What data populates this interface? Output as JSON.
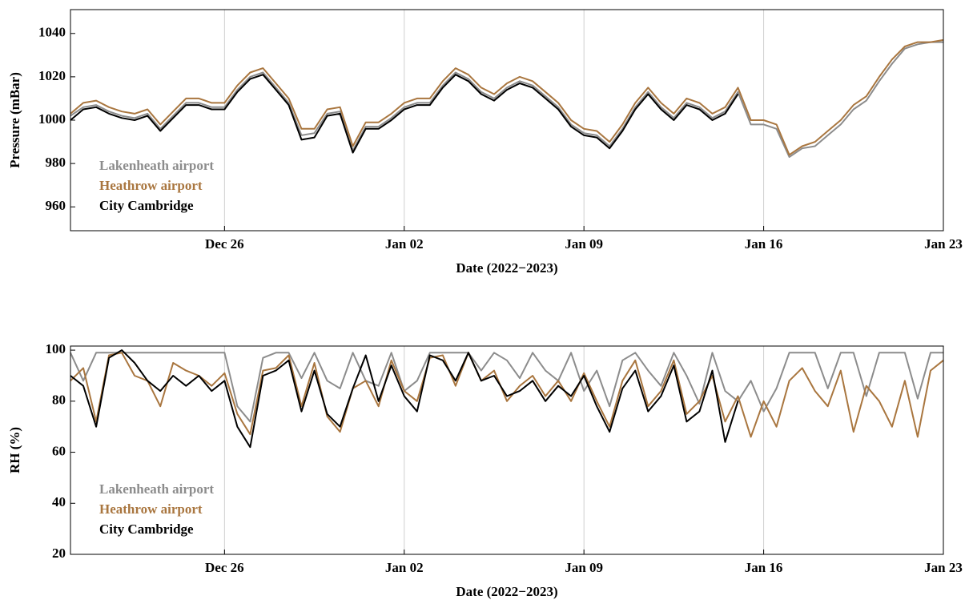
{
  "chart_data": [
    {
      "type": "line",
      "xlabel": "Date (2022−2023)",
      "ylabel": "Pressure (mBar)",
      "grid": true,
      "legend": "lower left",
      "xlim": [
        0,
        34
      ],
      "ylim": [
        949,
        1051
      ],
      "xticks": [
        {
          "value": 6,
          "label": "Dec 26"
        },
        {
          "value": 13,
          "label": "Jan 02"
        },
        {
          "value": 20,
          "label": "Jan 09"
        },
        {
          "value": 27,
          "label": "Jan 16"
        },
        {
          "value": 34,
          "label": "Jan 23"
        }
      ],
      "yticks": [
        960,
        980,
        1000,
        1020,
        1040
      ],
      "x": [
        0,
        0.5,
        1,
        1.5,
        2,
        2.5,
        3,
        3.5,
        4,
        4.5,
        5,
        5.5,
        6,
        6.5,
        7,
        7.5,
        8,
        8.5,
        9,
        9.5,
        10,
        10.5,
        11,
        11.5,
        12,
        12.5,
        13,
        13.5,
        14,
        14.5,
        15,
        15.5,
        16,
        16.5,
        17,
        17.5,
        18,
        18.5,
        19,
        19.5,
        20,
        20.5,
        21,
        21.5,
        22,
        22.5,
        23,
        23.5,
        24,
        24.5,
        25,
        25.5,
        26,
        26.5,
        27,
        27.5,
        28,
        28.5,
        29,
        29.5,
        30,
        30.5,
        31,
        31.5,
        32,
        32.5,
        33,
        33.5,
        34
      ],
      "series": [
        {
          "name": "Lakenheath airport",
          "color": "#8c8c8c",
          "values": [
            1002,
            1006,
            1007,
            1004,
            1002,
            1001,
            1003,
            996,
            1002,
            1008,
            1008,
            1006,
            1006,
            1014,
            1020,
            1022,
            1015,
            1008,
            993,
            994,
            1003,
            1004,
            986,
            997,
            997,
            1001,
            1006,
            1008,
            1008,
            1016,
            1022,
            1019,
            1013,
            1010,
            1015,
            1018,
            1016,
            1011,
            1006,
            998,
            994,
            993,
            988,
            996,
            1006,
            1013,
            1006,
            1001,
            1008,
            1006,
            1001,
            1004,
            1013,
            998,
            998,
            996,
            983,
            987,
            988,
            993,
            998,
            1005,
            1009,
            1018,
            1026,
            1033,
            1035,
            1036,
            1036
          ]
        },
        {
          "name": "Heathrow airport",
          "color": "#a9763f",
          "values": [
            1003,
            1008,
            1009,
            1006,
            1004,
            1003,
            1005,
            998,
            1004,
            1010,
            1010,
            1008,
            1008,
            1016,
            1022,
            1024,
            1017,
            1010,
            996,
            996,
            1005,
            1006,
            988,
            999,
            999,
            1003,
            1008,
            1010,
            1010,
            1018,
            1024,
            1021,
            1015,
            1012,
            1017,
            1020,
            1018,
            1013,
            1008,
            1000,
            996,
            995,
            990,
            998,
            1008,
            1015,
            1008,
            1003,
            1010,
            1008,
            1003,
            1006,
            1015,
            1000,
            1000,
            998,
            984,
            988,
            990,
            995,
            1000,
            1007,
            1011,
            1020,
            1028,
            1034,
            1036,
            1036,
            1037
          ]
        },
        {
          "name": "City Cambridge",
          "color": "#000000",
          "values": [
            1000,
            1005,
            1006,
            1003,
            1001,
            1000,
            1002,
            995,
            1001,
            1007,
            1007,
            1005,
            1005,
            1013,
            1019,
            1021,
            1014,
            1007,
            991,
            992,
            1002,
            1003,
            985,
            996,
            996,
            1000,
            1005,
            1007,
            1007,
            1015,
            1021,
            1018,
            1012,
            1009,
            1014,
            1017,
            1015,
            1010,
            1005,
            997,
            993,
            992,
            987,
            995,
            1005,
            1012,
            1005,
            1000,
            1007,
            1005,
            1000,
            1003,
            1012,
            null,
            null,
            null,
            null,
            null,
            null,
            null,
            null,
            null,
            null,
            null,
            null,
            null,
            null,
            null,
            null
          ]
        }
      ]
    },
    {
      "type": "line",
      "xlabel": "Date (2022−2023)",
      "ylabel": "RH (%)",
      "grid": true,
      "legend": "lower left",
      "xlim": [
        0,
        34
      ],
      "ylim": [
        20,
        101.6
      ],
      "xticks": [
        {
          "value": 6,
          "label": "Dec 26"
        },
        {
          "value": 13,
          "label": "Jan 02"
        },
        {
          "value": 20,
          "label": "Jan 09"
        },
        {
          "value": 27,
          "label": "Jan 16"
        },
        {
          "value": 34,
          "label": "Jan 23"
        }
      ],
      "yticks": [
        20,
        40,
        60,
        80,
        100
      ],
      "x": [
        0,
        0.5,
        1,
        1.5,
        2,
        2.5,
        3,
        3.5,
        4,
        4.5,
        5,
        5.5,
        6,
        6.5,
        7,
        7.5,
        8,
        8.5,
        9,
        9.5,
        10,
        10.5,
        11,
        11.5,
        12,
        12.5,
        13,
        13.5,
        14,
        14.5,
        15,
        15.5,
        16,
        16.5,
        17,
        17.5,
        18,
        18.5,
        19,
        19.5,
        20,
        20.5,
        21,
        21.5,
        22,
        22.5,
        23,
        23.5,
        24,
        24.5,
        25,
        25.5,
        26,
        26.5,
        27,
        27.5,
        28,
        28.5,
        29,
        29.5,
        30,
        30.5,
        31,
        31.5,
        32,
        32.5,
        33,
        33.5,
        34
      ],
      "series": [
        {
          "name": "Lakenheath airport",
          "color": "#8c8c8c",
          "values": [
            99,
            88,
            99,
            99,
            99,
            99,
            99,
            99,
            99,
            99,
            99,
            99,
            99,
            78,
            72,
            97,
            99,
            99,
            89,
            99,
            88,
            85,
            99,
            88,
            86,
            99,
            84,
            88,
            99,
            99,
            99,
            99,
            92,
            99,
            96,
            89,
            99,
            92,
            88,
            99,
            84,
            92,
            78,
            96,
            99,
            92,
            86,
            99,
            90,
            79,
            99,
            84,
            80,
            88,
            76,
            85,
            99,
            99,
            99,
            85,
            99,
            99,
            82,
            99,
            99,
            99,
            81,
            99,
            99
          ]
        },
        {
          "name": "Heathrow airport",
          "color": "#a9763f",
          "values": [
            88,
            93,
            72,
            98,
            99,
            90,
            88,
            78,
            95,
            92,
            90,
            86,
            91,
            75,
            67,
            92,
            93,
            98,
            78,
            95,
            74,
            68,
            85,
            88,
            78,
            96,
            84,
            80,
            97,
            98,
            86,
            99,
            88,
            92,
            80,
            86,
            90,
            82,
            88,
            80,
            91,
            80,
            70,
            88,
            96,
            78,
            84,
            96,
            75,
            80,
            90,
            72,
            82,
            66,
            80,
            70,
            88,
            93,
            84,
            78,
            92,
            68,
            86,
            80,
            70,
            88,
            66,
            92,
            96
          ]
        },
        {
          "name": "City Cambridge",
          "color": "#000000",
          "values": [
            90,
            86,
            70,
            97,
            100,
            95,
            88,
            84,
            90,
            86,
            90,
            84,
            88,
            70,
            62,
            90,
            92,
            96,
            76,
            92,
            75,
            70,
            85,
            98,
            80,
            94,
            82,
            76,
            98,
            96,
            88,
            99,
            88,
            90,
            82,
            84,
            88,
            80,
            86,
            82,
            90,
            78,
            68,
            85,
            92,
            76,
            82,
            94,
            72,
            76,
            92,
            64,
            80,
            null,
            null,
            null,
            null,
            null,
            null,
            null,
            null,
            null,
            null,
            null,
            null,
            null,
            null,
            null,
            null
          ]
        }
      ]
    }
  ]
}
